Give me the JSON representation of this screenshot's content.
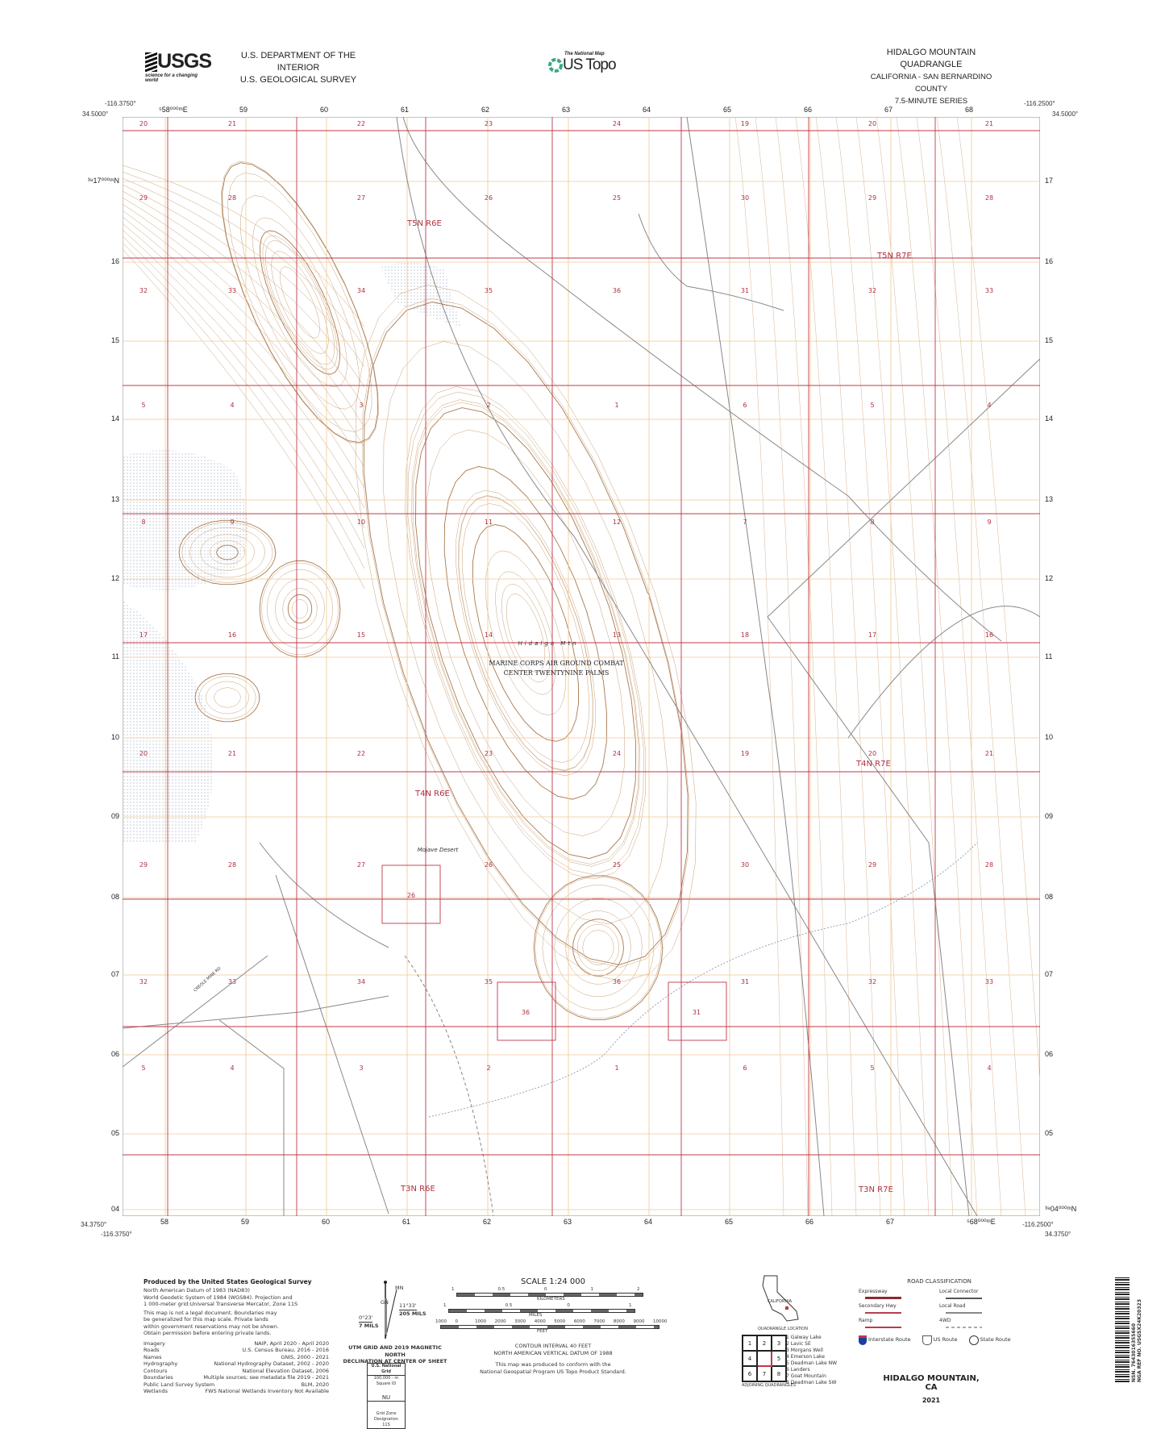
{
  "header": {
    "agency_logo": "USGS",
    "agency_tagline": "science for a changing world",
    "department": "U.S. DEPARTMENT OF THE INTERIOR",
    "survey": "U.S. GEOLOGICAL SURVEY",
    "product_small": "The National Map",
    "product": "US Topo",
    "quad_title": "HIDALGO MOUNTAIN QUADRANGLE",
    "quad_location": "CALIFORNIA - SAN BERNARDINO COUNTY",
    "series": "7.5-MINUTE SERIES"
  },
  "corners": {
    "top_left_lon": "-116.3750°",
    "top_left_lat": "34.5000°",
    "top_right_lon": "-116.2500°",
    "top_right_lat": "34.5000°",
    "bottom_left_lat": "34.3750°",
    "bottom_left_lon": "-116.3750°",
    "bottom_right_lon": "-116.2500°",
    "bottom_right_lat": "34.3750°"
  },
  "utm": {
    "top_eastings": [
      "⁵58⁰⁰⁰ᵐE",
      "59",
      "60",
      "61",
      "62",
      "63",
      "64",
      "65",
      "66",
      "67",
      "68"
    ],
    "bottom_eastings": [
      "58",
      "59",
      "60",
      "61",
      "62",
      "63",
      "64",
      "65",
      "66",
      "67",
      "⁵68⁰⁰⁰ᵐE"
    ],
    "left_northings": [
      "³⁸17⁰⁰⁰ᵐN",
      "16",
      "15",
      "14",
      "13",
      "12",
      "11",
      "10",
      "09",
      "08",
      "07",
      "06",
      "05",
      "04"
    ],
    "right_northings": [
      "17",
      "16",
      "15",
      "14",
      "13",
      "12",
      "11",
      "10",
      "09",
      "08",
      "07",
      "06",
      "05",
      "³⁸04⁰⁰⁰ᵐN"
    ]
  },
  "map": {
    "colors": {
      "section_line": "#c0384a",
      "utm_grid": "#f0c890",
      "contour": "#c9a27a",
      "index_contour": "#a97a50",
      "road": "#888888",
      "section_number": "#b0303f",
      "dotted_area": "#9aa6c0"
    },
    "section_rows": [
      [
        "20",
        "21",
        "22",
        "23",
        "24",
        "19",
        "20",
        "21"
      ],
      [
        "29",
        "28",
        "27",
        "26",
        "25",
        "30",
        "29",
        "28"
      ],
      [
        "32",
        "33",
        "34",
        "35",
        "36",
        "31",
        "32",
        "33"
      ],
      [
        "5",
        "4",
        "3",
        "2",
        "1",
        "6",
        "5",
        "4"
      ],
      [
        "8",
        "9",
        "10",
        "11",
        "12",
        "7",
        "8",
        "9"
      ],
      [
        "17",
        "16",
        "15",
        "14",
        "13",
        "18",
        "17",
        "16"
      ],
      [
        "20",
        "21",
        "22",
        "23",
        "24",
        "19",
        "20",
        "21"
      ],
      [
        "29",
        "28",
        "27",
        "26",
        "25",
        "30",
        "29",
        "28"
      ],
      [
        "32",
        "33",
        "34",
        "35",
        "36",
        "31",
        "32",
        "33"
      ],
      [
        "5",
        "4",
        "3",
        "2",
        "1",
        "6",
        "5",
        "4"
      ]
    ],
    "extra_sections": [
      "26",
      "36",
      "31"
    ],
    "townships": [
      "T5N R6E",
      "T5N R7E",
      "T4N R6E",
      "T4N R7E",
      "T3N R6E",
      "T3N R7E"
    ],
    "features": {
      "peak": "Hidalgo Mtn",
      "reservation_line1": "MARINE CORPS AIR GROUND COMBAT",
      "reservation_line2": "CENTER TWENTYNINE PALMS",
      "region": "Mojave Desert",
      "road": "CREOLE MINE RD"
    }
  },
  "footer": {
    "produced_by": "Produced by the United States Geological Survey",
    "datum_lines": [
      "North American Datum of 1983 (NAD83)",
      "World Geodetic System of 1984 (WGS84). Projection and",
      "1 000-meter grid:Universal Transverse Mercator, Zone 11S"
    ],
    "disclaimer": "This map is not a legal document. Boundaries may be generalized for this map scale. Private lands within government reservations may not be shown. Obtain permission before entering private lands.",
    "sources": [
      {
        "name": "Imagery",
        "value": "NAIP, April 2020 - April 2020"
      },
      {
        "name": "Roads",
        "value": "U.S. Census Bureau, 2016 - 2016"
      },
      {
        "name": "Names",
        "value": "GNIS, 2000 - 2021"
      },
      {
        "name": "Hydrography",
        "value": "National Hydrography Dataset, 2002 - 2020"
      },
      {
        "name": "Contours",
        "value": "National Elevation Dataset, 2006"
      },
      {
        "name": "Boundaries",
        "value": "Multiple sources; see metadata file 2019 - 2021"
      },
      {
        "name": "Public Land Survey System",
        "value": "BLM, 2020"
      },
      {
        "name": "Wetlands",
        "value": "FWS National Wetlands Inventory Not Available"
      }
    ],
    "declination": {
      "mn": "MN",
      "gn": "GN",
      "angle1": "0°23'",
      "mils1": "7 MILS",
      "angle2": "11°33'",
      "mils2": "205 MILS",
      "caption1": "UTM GRID AND 2019 MAGNETIC NORTH",
      "caption2": "DECLINATION AT CENTER OF SHEET"
    },
    "grid_box": {
      "title": "U.S. National Grid",
      "subtitle": "100,000 - m Square ID",
      "square": "NU",
      "zone_label": "Grid Zone Designation",
      "zone": "11S"
    },
    "scale": {
      "title": "SCALE 1:24 000",
      "km_ticks": [
        "1",
        "0.5",
        "0",
        "1",
        "2"
      ],
      "km_label": "KILOMETERS",
      "m_ticks": [
        "1000",
        "500",
        "0",
        "1000",
        "2000"
      ],
      "m_label": "METERS",
      "mi_ticks": [
        "1",
        "0.5",
        "0",
        "1"
      ],
      "mi_label": "MILES",
      "ft_ticks": [
        "1000",
        "0",
        "1000",
        "2000",
        "3000",
        "4000",
        "5000",
        "6000",
        "7000",
        "8000",
        "9000",
        "10000"
      ],
      "ft_label": "FEET"
    },
    "contour_interval": "CONTOUR INTERVAL 40 FEET",
    "vertical_datum": "NORTH AMERICAN VERTICAL DATUM OF 1988",
    "standard_line1": "This map was produced to conform with the",
    "standard_line2": "National Geospatial Program US Topo Product Standard.",
    "location_state": "CALIFORNIA",
    "location_caption": "QUADRANGLE LOCATION",
    "adjoining_caption": "ADJOINING QUADRANGLES",
    "adjoining": [
      "1 Galway Lake",
      "2 Lavic SE",
      "3 Morgans Well",
      "4 Emerson Lake",
      "5 Deadman Lake NW",
      "6 Landers",
      "7 Goat Mountain",
      "8 Deadman Lake SW"
    ],
    "adjoining_grid": [
      "1",
      "2",
      "3",
      "4",
      "",
      "5",
      "6",
      "7",
      "8"
    ],
    "road_legend": {
      "title": "ROAD CLASSIFICATION",
      "items": [
        {
          "label": "Expressway",
          "color": "#8a2a34"
        },
        {
          "label": "Local Connector",
          "color": "#555555"
        },
        {
          "label": "Secondary Hwy",
          "color": "#b4404c"
        },
        {
          "label": "Local Road",
          "color": "#888888"
        },
        {
          "label": "Ramp",
          "color": "#b4404c"
        },
        {
          "label": "4WD",
          "color": "#aaaaaa"
        }
      ],
      "interstate": "Interstate Route",
      "us_route": "US Route",
      "state_route": "State Route"
    },
    "map_name": "HIDALGO MOUNTAIN, CA",
    "year": "2021",
    "barcode_text1": "NSN. 7643016355660",
    "barcode_text2": "NGA REF NO. USGSX24K20323"
  }
}
